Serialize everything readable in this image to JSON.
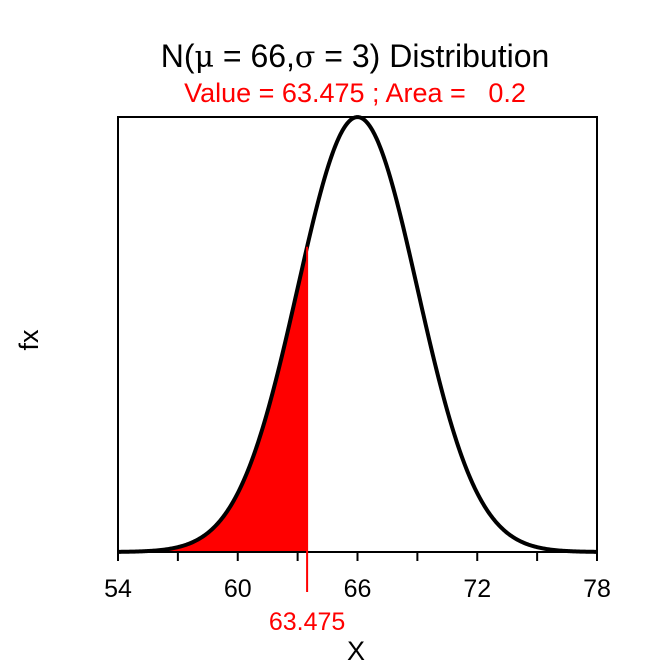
{
  "chart_data": {
    "type": "area",
    "distribution": "normal",
    "mean": 66,
    "sd": 3,
    "title": {
      "prefix": "N(",
      "mu_symbol": "μ",
      "mu_eq": " = 66,",
      "sigma_symbol": "σ",
      "sigma_eq": " = 3)",
      "suffix": " Distribution"
    },
    "subtitle": "Value = 63.475 ; Area =   0.2",
    "value": 63.475,
    "value_label": "63.475",
    "area": 0.2,
    "shaded_tail": "lower",
    "xlabel": "X",
    "ylabel": "fx",
    "xlim": [
      54,
      78
    ],
    "ylim": [
      0,
      0.133
    ],
    "x_ticks": [
      54,
      57,
      60,
      63,
      66,
      69,
      72,
      75,
      78
    ],
    "x_tick_labels": [
      {
        "value": 54,
        "label": "54"
      },
      {
        "value": 60,
        "label": "60"
      },
      {
        "value": 66,
        "label": "66"
      },
      {
        "value": 72,
        "label": "72"
      },
      {
        "value": 78,
        "label": "78"
      }
    ],
    "colors": {
      "curve": "#000000",
      "shade": "#ff0000",
      "subtitle": "#ff0000",
      "value_marker": "#ff0000"
    }
  }
}
